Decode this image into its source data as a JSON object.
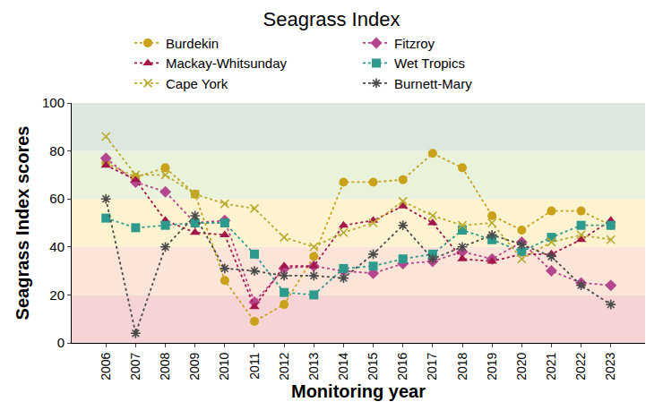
{
  "chart_data": {
    "type": "line",
    "title": "Seagrass Index",
    "x_label": "Monitoring year",
    "y_label": "Seagrass Index scores",
    "categories": [
      "2006",
      "2007",
      "2008",
      "2009",
      "2010",
      "2011",
      "2012",
      "2013",
      "2014",
      "2015",
      "2016",
      "2017",
      "2018",
      "2019",
      "2020",
      "2021",
      "2022",
      "2023"
    ],
    "series": [
      {
        "name": "Burdekin",
        "color": "#c9a21a",
        "marker": "circle",
        "line_style": "dot",
        "values": [
          75,
          69,
          73,
          62,
          26,
          9,
          16,
          36,
          67,
          67,
          68,
          79,
          73,
          53,
          47,
          55,
          55,
          49
        ]
      },
      {
        "name": "Fitzroy",
        "color": "#b5478f",
        "marker": "diamond",
        "line_style": "dot",
        "values": [
          77,
          67,
          63,
          50,
          51,
          17,
          31,
          32,
          30,
          29,
          33,
          34,
          38,
          35,
          42,
          30,
          25,
          24
        ]
      },
      {
        "name": "Mackay-Whitsunday",
        "color": "#a3174a",
        "marker": "triangle-up",
        "line_style": "dot",
        "values": [
          74,
          68,
          51,
          46,
          45,
          15,
          32,
          32,
          49,
          51,
          57,
          50,
          35,
          34,
          37,
          37,
          43,
          51
        ]
      },
      {
        "name": "Wet Tropics",
        "color": "#2e9a8e",
        "marker": "square",
        "line_style": "dot",
        "values": [
          52,
          48,
          49,
          50,
          50,
          37,
          21,
          20,
          31,
          32,
          35,
          37,
          47,
          43,
          38,
          44,
          49,
          49
        ]
      },
      {
        "name": "Cape York",
        "color": "#b8ab2e",
        "marker": "x-thin-open",
        "line_style": "dot",
        "values": [
          86,
          70,
          70,
          62,
          58,
          56,
          44,
          40,
          46,
          50,
          59,
          53,
          49,
          50,
          35,
          42,
          45,
          43
        ]
      },
      {
        "name": "Burnett-Mary",
        "color": "#4a4a4a",
        "marker": "asterisk-open",
        "line_style": "dot",
        "values": [
          60,
          4,
          40,
          53,
          31,
          30,
          28,
          28,
          27,
          37,
          49,
          35,
          40,
          45,
          41,
          36,
          24,
          16
        ]
      }
    ],
    "ylim": [
      0,
      100
    ],
    "yticks": [
      0,
      20,
      40,
      60,
      80,
      100
    ],
    "grid": false,
    "legend": "top"
  }
}
